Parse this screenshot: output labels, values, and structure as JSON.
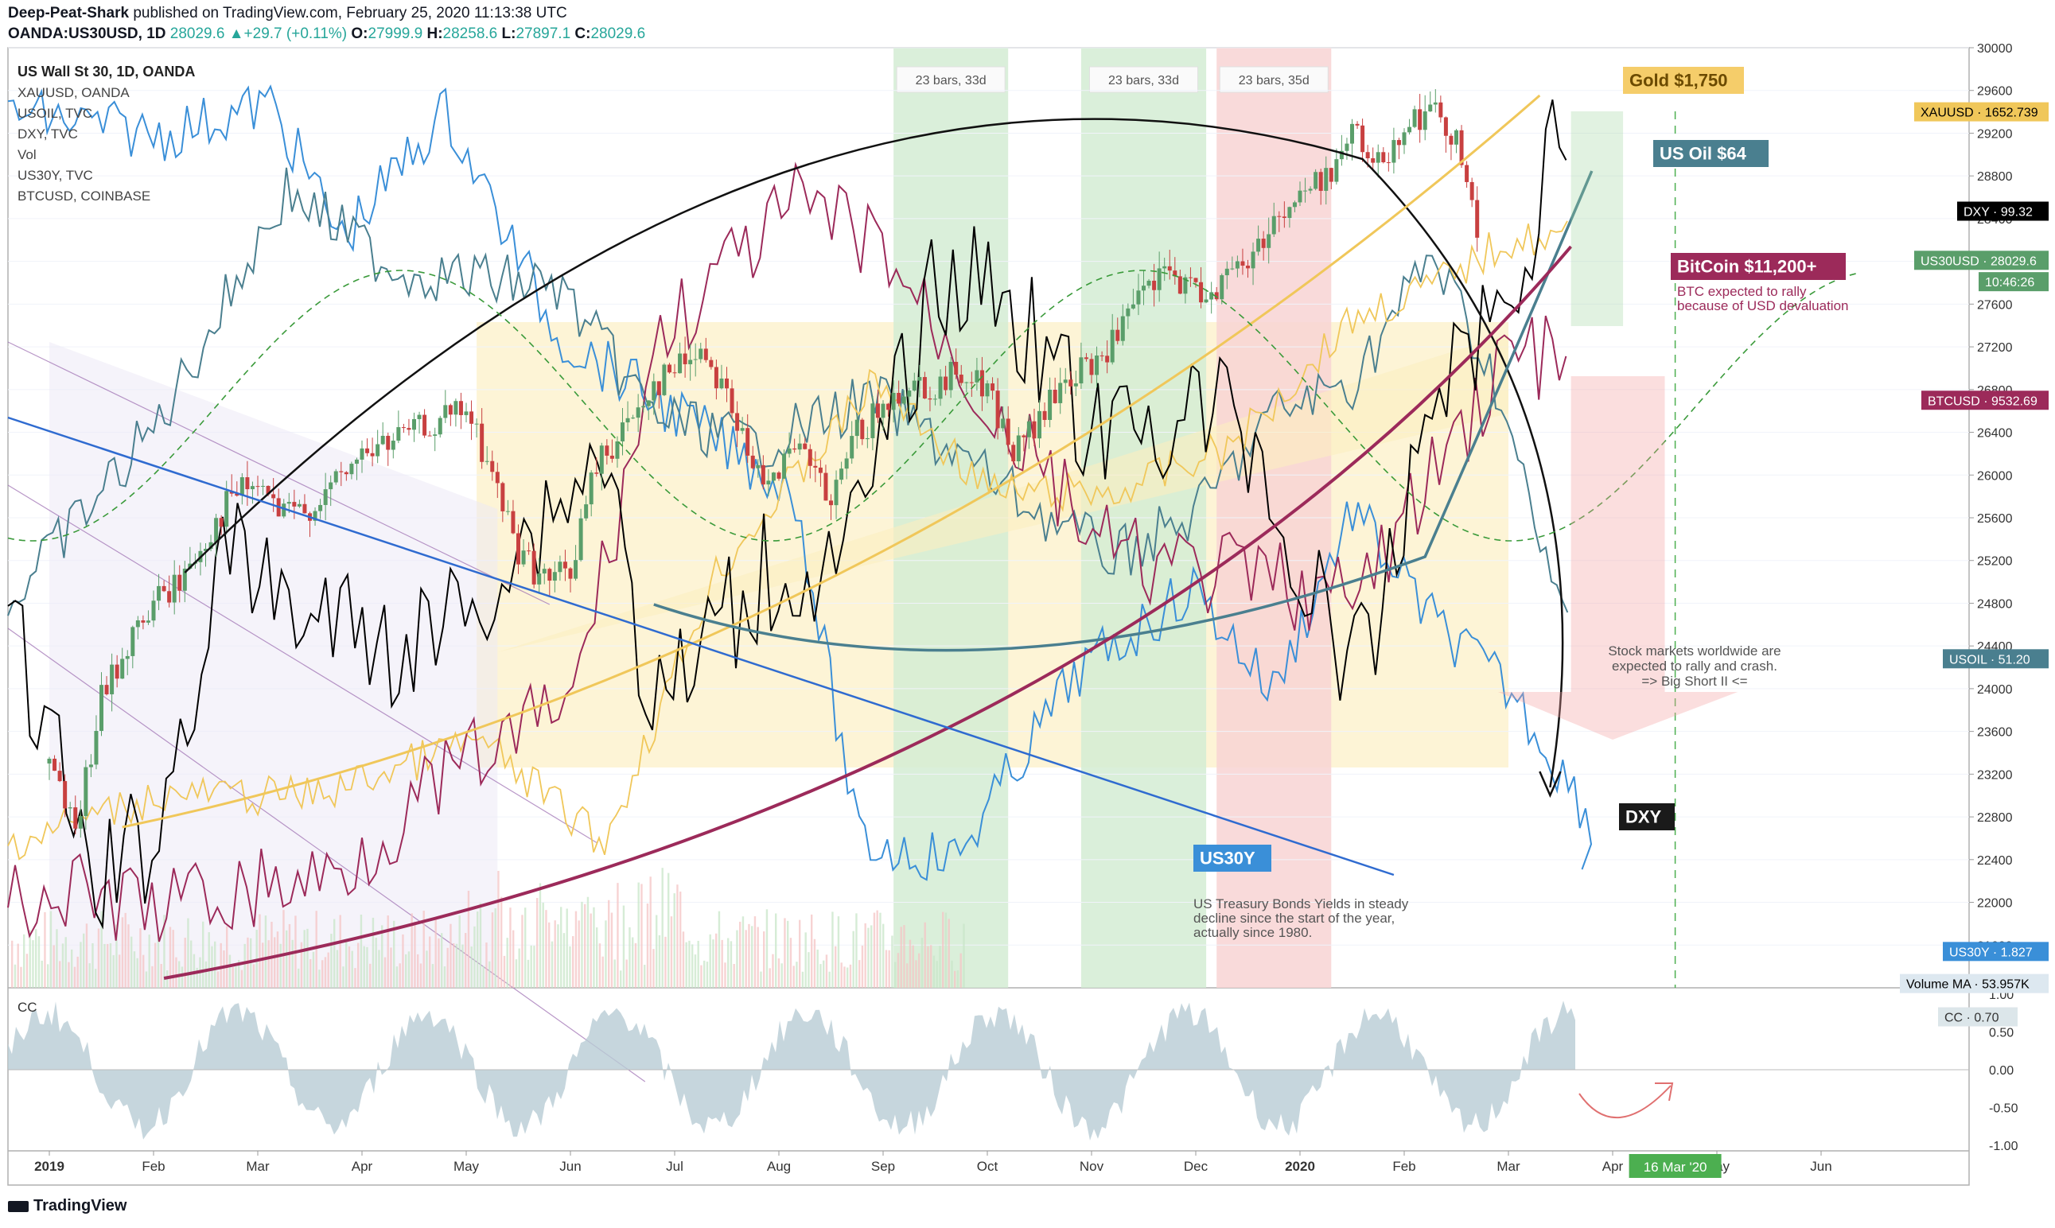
{
  "header": {
    "author": "Deep-Peat-Shark",
    "published": " published on TradingView.com, February 25, 2020 11:13:38 UTC",
    "symbol_line": "OANDA:US30USD, 1D",
    "price": "28029.6",
    "change": "+29.7 (+0.11%)",
    "o_label": "O:",
    "o": "27999.9",
    "h_label": "H:",
    "h": "28258.6",
    "l_label": "L:",
    "l": "27897.1",
    "c_label": "C:",
    "c": "28029.6"
  },
  "legend": {
    "title": "US Wall St 30, 1D, OANDA",
    "items": [
      "XAUUSD, OANDA",
      "USOIL, TVC",
      "DXY, TVC",
      "Vol",
      "US30Y, TVC",
      "BTCUSD, COINBASE"
    ]
  },
  "footer": {
    "brand": "TradingView"
  },
  "colors": {
    "gold": "#f0c75a",
    "oil": "#4a7f8f",
    "dxy": "#000000",
    "btc": "#9c2a5a",
    "us30y": "#3a8fd8",
    "main_up": "#5a9e6a",
    "main_down": "#c84040",
    "green_zone": "#d4ecd4",
    "red_zone": "#f8d4d4",
    "yellow_zone": "#fdf1cc"
  },
  "chart_data": [
    {
      "type": "line",
      "title": "US Wall St 30, 1D, OANDA",
      "x_ticks": [
        "2019",
        "Feb",
        "Mar",
        "Apr",
        "May",
        "Jun",
        "Jul",
        "Aug",
        "Sep",
        "Oct",
        "Nov",
        "Dec",
        "2020",
        "Feb",
        "Mar",
        "Apr",
        "May",
        "Jun"
      ],
      "x_tick_months": [
        0,
        1,
        2,
        3,
        4,
        5,
        6,
        7,
        8,
        9,
        10,
        11,
        12,
        13,
        14,
        15,
        16,
        17
      ],
      "y_ticks": [
        30000,
        29600,
        29200,
        28800,
        28400,
        28000,
        27600,
        27200,
        26800,
        26400,
        26000,
        25600,
        25200,
        24800,
        24400,
        24000,
        23600,
        23200,
        22800,
        22400,
        22000,
        21600
      ],
      "ylim": [
        21200,
        30000
      ],
      "price_series": {
        "name": "US30USD",
        "x": [
          0.0,
          0.25,
          0.5,
          0.75,
          1.0,
          1.25,
          1.5,
          1.75,
          2.0,
          2.25,
          2.5,
          2.75,
          3.0,
          3.25,
          3.5,
          3.75,
          4.0,
          4.25,
          4.5,
          4.75,
          5.0,
          5.25,
          5.5,
          5.75,
          6.0,
          6.25,
          6.5,
          6.75,
          7.0,
          7.25,
          7.5,
          7.75,
          8.0,
          8.25,
          8.5,
          8.75,
          9.0,
          9.25,
          9.5,
          9.75,
          10.0,
          10.25,
          10.5,
          10.75,
          11.0,
          11.25,
          11.5,
          11.75,
          12.0,
          12.25,
          12.5,
          12.75,
          13.0,
          13.25,
          13.5,
          13.75
        ],
        "values": [
          23300,
          22600,
          23900,
          24400,
          24800,
          25000,
          25400,
          25800,
          25900,
          25600,
          25700,
          25900,
          26200,
          26300,
          26400,
          26500,
          26600,
          26000,
          25300,
          25000,
          25100,
          26100,
          26400,
          26800,
          27000,
          27200,
          26800,
          26000,
          26100,
          26200,
          25700,
          26400,
          26600,
          26900,
          26800,
          27000,
          26800,
          26200,
          26500,
          26900,
          27000,
          27300,
          27700,
          27900,
          27700,
          27800,
          28000,
          28400,
          28600,
          28800,
          29200,
          28900,
          29300,
          29400,
          29200,
          28000
        ]
      },
      "overlays": [
        {
          "name": "XAUUSD",
          "last": "1652.739"
        },
        {
          "name": "USOIL",
          "last": "51.20"
        },
        {
          "name": "DXY",
          "last": "99.32"
        },
        {
          "name": "US30Y",
          "last": "1.827"
        },
        {
          "name": "BTCUSD",
          "last": "9532.69"
        }
      ],
      "price_tags": [
        {
          "label": "XAUUSD",
          "value": "1652.739",
          "y": 29400,
          "color": "#f0c75a",
          "text_color": "#000"
        },
        {
          "label": "DXY",
          "value": "99.32",
          "y": 28470,
          "color": "#000000",
          "text_color": "#fff"
        },
        {
          "label": "US30USD",
          "value": "28029.6",
          "y": 28010,
          "color": "#5a9e6a",
          "text_color": "#fff"
        },
        {
          "label": "",
          "value": "10:46:26",
          "y": 27810,
          "color": "#5a9e6a",
          "text_color": "#fff"
        },
        {
          "label": "BTCUSD",
          "value": "9532.69",
          "y": 26700,
          "color": "#9c2a5a",
          "text_color": "#fff"
        },
        {
          "label": "USOIL",
          "value": "51.20",
          "y": 24280,
          "color": "#4a7f8f",
          "text_color": "#fff"
        },
        {
          "label": "US30Y",
          "value": "1.827",
          "y": 21540,
          "color": "#3a8fd8",
          "text_color": "#fff"
        },
        {
          "label": "Volume MA",
          "value": "53.957K",
          "y": 21240,
          "color": "#dde8f0",
          "text_color": "#000"
        }
      ],
      "zone_labels": [
        "23 bars, 33d",
        "23 bars, 33d",
        "23 bars, 35d"
      ],
      "annotations": {
        "gold": "Gold $1,750",
        "oil": "US Oil $64",
        "btc": "BitCoin $11,200+",
        "btc_note_1": "BTC expected to rally",
        "btc_note_2": "because of USD devaluation",
        "stock_note_1": "Stock markets worldwide are",
        "stock_note_2": "expected to rally and crash.",
        "stock_note_3": "=> Big Short II <=",
        "dxy": "DXY",
        "us30y": "US30Y",
        "us30y_note_1": "US Treasury Bonds Yields in steady",
        "us30y_note_2": "decline since the start of the year,",
        "us30y_note_3": "actually since 1980.",
        "date_marker": "16 Mar '20"
      }
    },
    {
      "type": "area",
      "title": "CC",
      "y_ticks": [
        "1.00",
        "0.50",
        "0.00",
        "-0.50",
        "-1.00"
      ],
      "ylim": [
        -1,
        1
      ],
      "last_label": "CC",
      "last_value": "0.70"
    }
  ]
}
